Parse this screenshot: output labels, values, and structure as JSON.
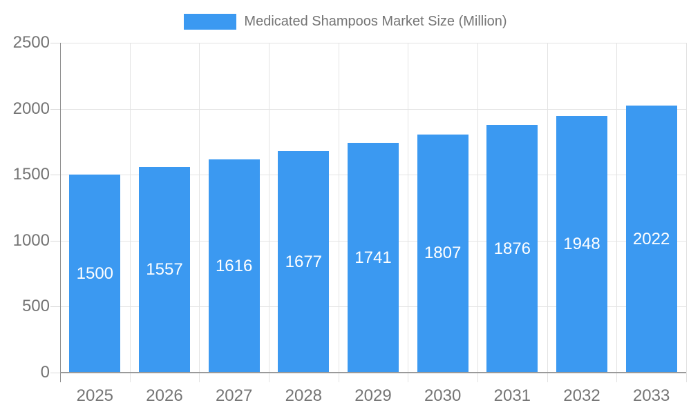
{
  "legend": {
    "label": "Medicated Shampoos Market Size (Million)"
  },
  "chart_data": {
    "type": "bar",
    "title": "Medicated Shampoos Market Size (Million)",
    "categories": [
      "2025",
      "2026",
      "2027",
      "2028",
      "2029",
      "2030",
      "2031",
      "2032",
      "2033"
    ],
    "values": [
      1500,
      1557,
      1616,
      1677,
      1741,
      1807,
      1876,
      1948,
      2022
    ],
    "xlabel": "",
    "ylabel": "",
    "ylim": [
      0,
      2500
    ],
    "yticks": [
      0,
      500,
      1000,
      1500,
      2000,
      2500
    ],
    "grid": true,
    "legend_position": "top",
    "value_labels": "inside-center",
    "colors": {
      "bar": "#3b99f1",
      "value_label": "#ffffff",
      "axis_text": "#757575",
      "gridline": "#e3e3e3",
      "axis_line": "#9a9a9a"
    }
  }
}
